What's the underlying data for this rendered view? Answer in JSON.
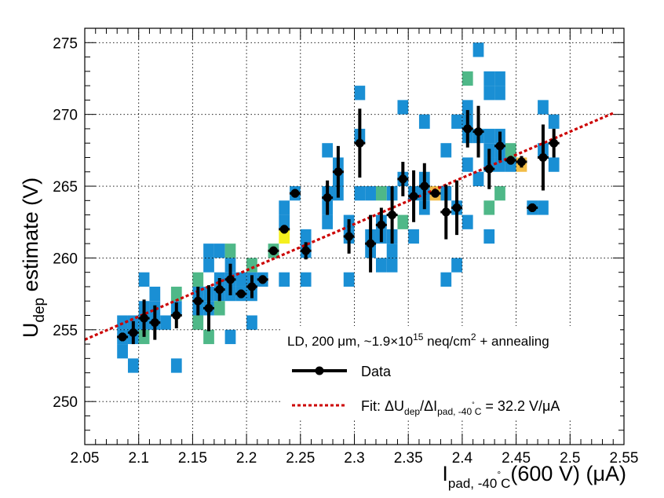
{
  "chart_data": {
    "type": "scatter",
    "xlabel": {
      "main": "I",
      "sub": "pad, -40",
      "deg": "°",
      "subC": "C",
      "rest": "(600 V) (μA)"
    },
    "ylabel": {
      "main": "U",
      "sub": "dep",
      "rest": " estimate (V)"
    },
    "xlim": [
      2.05,
      2.55
    ],
    "ylim": [
      247,
      276
    ],
    "grid": true,
    "x_ticks": [
      {
        "v": 2.05,
        "label": "2.05"
      },
      {
        "v": 2.1,
        "label": "2.1"
      },
      {
        "v": 2.15,
        "label": "2.15"
      },
      {
        "v": 2.2,
        "label": "2.2"
      },
      {
        "v": 2.25,
        "label": "2.25"
      },
      {
        "v": 2.3,
        "label": "2.3"
      },
      {
        "v": 2.35,
        "label": "2.35"
      },
      {
        "v": 2.4,
        "label": "2.4"
      },
      {
        "v": 2.45,
        "label": "2.45"
      },
      {
        "v": 2.5,
        "label": "2.5"
      },
      {
        "v": 2.55,
        "label": "2.55"
      }
    ],
    "y_ticks": [
      {
        "v": 250,
        "label": "250"
      },
      {
        "v": 255,
        "label": "255"
      },
      {
        "v": 260,
        "label": "260"
      },
      {
        "v": 265,
        "label": "265"
      },
      {
        "v": 270,
        "label": "270"
      },
      {
        "v": 275,
        "label": "275"
      }
    ],
    "legend": {
      "position": "bottom-right",
      "header": {
        "pre": "LD, 200 μm, ~1.9×10",
        "sup1": "15",
        "mid": " neq/cm",
        "sup2": "2",
        "post": " + annealing"
      },
      "data_label": "Data",
      "fit_label": {
        "pre": "Fit: ΔU",
        "sub1": "dep",
        "mid": "/ΔI",
        "sub2": "pad, -40",
        "deg": "°",
        "sub3": "C",
        "post": " = 32.2 V/μA"
      }
    },
    "colors": {
      "blue": "#1a8fd4",
      "green": "#4fb888",
      "yellow": "#f5f01e",
      "orange": "#f2bd47",
      "fit": "#cc0000"
    },
    "bin_size": {
      "x": 0.01,
      "y": 1.0
    },
    "fit": {
      "slope": 32.2,
      "intercept": 188.3,
      "x_range": [
        2.05,
        2.54
      ]
    },
    "series": [
      {
        "name": "Data",
        "points": [
          {
            "x": 2.085,
            "y": 254.5,
            "err": 0.3
          },
          {
            "x": 2.095,
            "y": 254.8,
            "err": 0.8
          },
          {
            "x": 2.105,
            "y": 255.8,
            "err": 1.3
          },
          {
            "x": 2.115,
            "y": 255.5,
            "err": 1.2
          },
          {
            "x": 2.135,
            "y": 256.0,
            "err": 0.9
          },
          {
            "x": 2.155,
            "y": 257.0,
            "err": 1.0
          },
          {
            "x": 2.165,
            "y": 256.5,
            "err": 1.6
          },
          {
            "x": 2.175,
            "y": 257.8,
            "err": 0.8
          },
          {
            "x": 2.185,
            "y": 258.5,
            "err": 1.1
          },
          {
            "x": 2.195,
            "y": 257.5,
            "err": 0.3
          },
          {
            "x": 2.205,
            "y": 258.0,
            "err": 0.8
          },
          {
            "x": 2.215,
            "y": 258.5,
            "err": 0.3
          },
          {
            "x": 2.225,
            "y": 260.5,
            "err": 0.3
          },
          {
            "x": 2.235,
            "y": 262.0,
            "err": 0.3
          },
          {
            "x": 2.245,
            "y": 264.5,
            "err": 0.3
          },
          {
            "x": 2.255,
            "y": 260.5,
            "err": 0.6
          },
          {
            "x": 2.275,
            "y": 264.2,
            "err": 1.2
          },
          {
            "x": 2.285,
            "y": 266.0,
            "err": 1.8
          },
          {
            "x": 2.295,
            "y": 261.5,
            "err": 1.2
          },
          {
            "x": 2.305,
            "y": 268.0,
            "err": 2.4
          },
          {
            "x": 2.315,
            "y": 261.0,
            "err": 2.0
          },
          {
            "x": 2.325,
            "y": 262.3,
            "err": 1.2
          },
          {
            "x": 2.335,
            "y": 263.0,
            "err": 2.0
          },
          {
            "x": 2.345,
            "y": 265.5,
            "err": 1.2
          },
          {
            "x": 2.355,
            "y": 264.3,
            "err": 1.8
          },
          {
            "x": 2.365,
            "y": 265.0,
            "err": 1.6
          },
          {
            "x": 2.375,
            "y": 264.5,
            "err": 0.3
          },
          {
            "x": 2.385,
            "y": 263.2,
            "err": 1.9
          },
          {
            "x": 2.395,
            "y": 263.5,
            "err": 1.9
          },
          {
            "x": 2.405,
            "y": 269.0,
            "err": 1.3
          },
          {
            "x": 2.415,
            "y": 268.8,
            "err": 1.8
          },
          {
            "x": 2.425,
            "y": 266.2,
            "err": 1.4
          },
          {
            "x": 2.435,
            "y": 267.8,
            "err": 1.0
          },
          {
            "x": 2.445,
            "y": 266.8,
            "err": 0.3
          },
          {
            "x": 2.455,
            "y": 266.7,
            "err": 0.4
          },
          {
            "x": 2.465,
            "y": 263.5,
            "err": 0.3
          },
          {
            "x": 2.475,
            "y": 267.0,
            "err": 2.3
          },
          {
            "x": 2.485,
            "y": 268.0,
            "err": 1.0
          }
        ]
      }
    ],
    "heatmap_bins": [
      {
        "x": 2.08,
        "y": 255,
        "c": "blue"
      },
      {
        "x": 2.08,
        "y": 254,
        "c": "blue"
      },
      {
        "x": 2.08,
        "y": 253,
        "c": "blue"
      },
      {
        "x": 2.09,
        "y": 255,
        "c": "blue"
      },
      {
        "x": 2.09,
        "y": 254,
        "c": "blue"
      },
      {
        "x": 2.09,
        "y": 252,
        "c": "blue"
      },
      {
        "x": 2.1,
        "y": 258,
        "c": "blue"
      },
      {
        "x": 2.1,
        "y": 256,
        "c": "blue"
      },
      {
        "x": 2.1,
        "y": 255,
        "c": "blue"
      },
      {
        "x": 2.1,
        "y": 254,
        "c": "green"
      },
      {
        "x": 2.11,
        "y": 257,
        "c": "blue"
      },
      {
        "x": 2.11,
        "y": 256,
        "c": "blue"
      },
      {
        "x": 2.11,
        "y": 255,
        "c": "blue"
      },
      {
        "x": 2.12,
        "y": 255,
        "c": "blue"
      },
      {
        "x": 2.13,
        "y": 257,
        "c": "green"
      },
      {
        "x": 2.13,
        "y": 256,
        "c": "blue"
      },
      {
        "x": 2.13,
        "y": 252,
        "c": "blue"
      },
      {
        "x": 2.15,
        "y": 258,
        "c": "green"
      },
      {
        "x": 2.15,
        "y": 257,
        "c": "blue"
      },
      {
        "x": 2.15,
        "y": 256,
        "c": "blue"
      },
      {
        "x": 2.15,
        "y": 255,
        "c": "green"
      },
      {
        "x": 2.16,
        "y": 260,
        "c": "blue"
      },
      {
        "x": 2.16,
        "y": 259,
        "c": "blue"
      },
      {
        "x": 2.16,
        "y": 257,
        "c": "blue"
      },
      {
        "x": 2.16,
        "y": 256,
        "c": "blue"
      },
      {
        "x": 2.16,
        "y": 254,
        "c": "green"
      },
      {
        "x": 2.17,
        "y": 260,
        "c": "blue"
      },
      {
        "x": 2.17,
        "y": 258,
        "c": "blue"
      },
      {
        "x": 2.17,
        "y": 257,
        "c": "blue"
      },
      {
        "x": 2.17,
        "y": 256,
        "c": "green"
      },
      {
        "x": 2.18,
        "y": 260,
        "c": "green"
      },
      {
        "x": 2.18,
        "y": 259,
        "c": "blue"
      },
      {
        "x": 2.18,
        "y": 258,
        "c": "blue"
      },
      {
        "x": 2.18,
        "y": 257,
        "c": "blue"
      },
      {
        "x": 2.18,
        "y": 254,
        "c": "blue"
      },
      {
        "x": 2.19,
        "y": 258,
        "c": "blue"
      },
      {
        "x": 2.19,
        "y": 257,
        "c": "blue"
      },
      {
        "x": 2.2,
        "y": 259,
        "c": "green"
      },
      {
        "x": 2.2,
        "y": 258,
        "c": "blue"
      },
      {
        "x": 2.2,
        "y": 257,
        "c": "blue"
      },
      {
        "x": 2.2,
        "y": 255,
        "c": "blue"
      },
      {
        "x": 2.21,
        "y": 258,
        "c": "blue"
      },
      {
        "x": 2.22,
        "y": 260,
        "c": "green"
      },
      {
        "x": 2.23,
        "y": 263,
        "c": "blue"
      },
      {
        "x": 2.23,
        "y": 262,
        "c": "blue"
      },
      {
        "x": 2.23,
        "y": 261,
        "c": "yellow"
      },
      {
        "x": 2.23,
        "y": 258,
        "c": "blue"
      },
      {
        "x": 2.24,
        "y": 264,
        "c": "blue"
      },
      {
        "x": 2.25,
        "y": 261,
        "c": "blue"
      },
      {
        "x": 2.25,
        "y": 260,
        "c": "blue"
      },
      {
        "x": 2.25,
        "y": 258,
        "c": "blue"
      },
      {
        "x": 2.27,
        "y": 267,
        "c": "blue"
      },
      {
        "x": 2.27,
        "y": 264,
        "c": "blue"
      },
      {
        "x": 2.27,
        "y": 263,
        "c": "blue"
      },
      {
        "x": 2.27,
        "y": 262,
        "c": "blue"
      },
      {
        "x": 2.28,
        "y": 266,
        "c": "blue"
      },
      {
        "x": 2.28,
        "y": 265,
        "c": "blue"
      },
      {
        "x": 2.28,
        "y": 264,
        "c": "blue"
      },
      {
        "x": 2.29,
        "y": 262,
        "c": "blue"
      },
      {
        "x": 2.29,
        "y": 261,
        "c": "blue"
      },
      {
        "x": 2.29,
        "y": 258,
        "c": "blue"
      },
      {
        "x": 2.3,
        "y": 271,
        "c": "blue"
      },
      {
        "x": 2.3,
        "y": 268,
        "c": "blue"
      },
      {
        "x": 2.3,
        "y": 264,
        "c": "blue"
      },
      {
        "x": 2.31,
        "y": 264,
        "c": "blue"
      },
      {
        "x": 2.31,
        "y": 261,
        "c": "blue"
      },
      {
        "x": 2.31,
        "y": 260,
        "c": "blue"
      },
      {
        "x": 2.32,
        "y": 264,
        "c": "green"
      },
      {
        "x": 2.32,
        "y": 262,
        "c": "blue"
      },
      {
        "x": 2.32,
        "y": 261,
        "c": "blue"
      },
      {
        "x": 2.32,
        "y": 259,
        "c": "blue"
      },
      {
        "x": 2.33,
        "y": 264,
        "c": "blue"
      },
      {
        "x": 2.33,
        "y": 261,
        "c": "blue"
      },
      {
        "x": 2.33,
        "y": 260,
        "c": "blue"
      },
      {
        "x": 2.33,
        "y": 259,
        "c": "blue"
      },
      {
        "x": 2.34,
        "y": 270,
        "c": "blue"
      },
      {
        "x": 2.34,
        "y": 265,
        "c": "blue"
      },
      {
        "x": 2.34,
        "y": 262,
        "c": "green"
      },
      {
        "x": 2.35,
        "y": 264,
        "c": "blue"
      },
      {
        "x": 2.35,
        "y": 261,
        "c": "blue"
      },
      {
        "x": 2.36,
        "y": 269,
        "c": "blue"
      },
      {
        "x": 2.36,
        "y": 265,
        "c": "blue"
      },
      {
        "x": 2.36,
        "y": 264,
        "c": "blue"
      },
      {
        "x": 2.36,
        "y": 263,
        "c": "blue"
      },
      {
        "x": 2.37,
        "y": 264,
        "c": "orange"
      },
      {
        "x": 2.38,
        "y": 267,
        "c": "blue"
      },
      {
        "x": 2.38,
        "y": 264,
        "c": "blue"
      },
      {
        "x": 2.38,
        "y": 258,
        "c": "blue"
      },
      {
        "x": 2.39,
        "y": 269,
        "c": "blue"
      },
      {
        "x": 2.39,
        "y": 263,
        "c": "blue"
      },
      {
        "x": 2.39,
        "y": 259,
        "c": "blue"
      },
      {
        "x": 2.4,
        "y": 272,
        "c": "green"
      },
      {
        "x": 2.4,
        "y": 270,
        "c": "blue"
      },
      {
        "x": 2.4,
        "y": 269,
        "c": "blue"
      },
      {
        "x": 2.4,
        "y": 268,
        "c": "blue"
      },
      {
        "x": 2.4,
        "y": 266,
        "c": "blue"
      },
      {
        "x": 2.4,
        "y": 262,
        "c": "blue"
      },
      {
        "x": 2.41,
        "y": 274,
        "c": "blue"
      },
      {
        "x": 2.41,
        "y": 268,
        "c": "blue"
      },
      {
        "x": 2.41,
        "y": 265,
        "c": "blue"
      },
      {
        "x": 2.42,
        "y": 272,
        "c": "blue"
      },
      {
        "x": 2.42,
        "y": 271,
        "c": "blue"
      },
      {
        "x": 2.42,
        "y": 268,
        "c": "blue"
      },
      {
        "x": 2.42,
        "y": 267,
        "c": "blue"
      },
      {
        "x": 2.42,
        "y": 266,
        "c": "blue"
      },
      {
        "x": 2.42,
        "y": 263,
        "c": "green"
      },
      {
        "x": 2.42,
        "y": 261,
        "c": "blue"
      },
      {
        "x": 2.43,
        "y": 272,
        "c": "blue"
      },
      {
        "x": 2.43,
        "y": 271,
        "c": "blue"
      },
      {
        "x": 2.43,
        "y": 268,
        "c": "blue"
      },
      {
        "x": 2.43,
        "y": 267,
        "c": "blue"
      },
      {
        "x": 2.43,
        "y": 266,
        "c": "blue"
      },
      {
        "x": 2.43,
        "y": 264,
        "c": "green"
      },
      {
        "x": 2.44,
        "y": 267,
        "c": "green"
      },
      {
        "x": 2.44,
        "y": 266,
        "c": "blue"
      },
      {
        "x": 2.45,
        "y": 266,
        "c": "orange"
      },
      {
        "x": 2.46,
        "y": 263,
        "c": "blue"
      },
      {
        "x": 2.47,
        "y": 270,
        "c": "blue"
      },
      {
        "x": 2.47,
        "y": 267,
        "c": "blue"
      },
      {
        "x": 2.47,
        "y": 263,
        "c": "blue"
      },
      {
        "x": 2.48,
        "y": 269,
        "c": "blue"
      },
      {
        "x": 2.48,
        "y": 266,
        "c": "blue"
      }
    ]
  }
}
